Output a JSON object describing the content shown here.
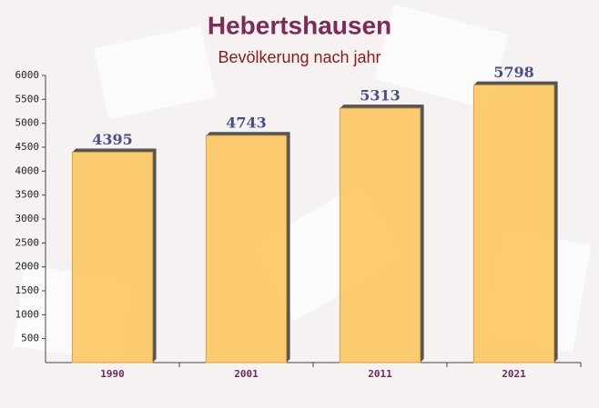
{
  "chart_data": {
    "type": "bar",
    "title": "Hebertshausen",
    "subtitle": "Bevölkerung nach jahr",
    "categories": [
      "1990",
      "2001",
      "2011",
      "2021"
    ],
    "values": [
      4395,
      4743,
      5313,
      5798
    ],
    "color": "#fdc560",
    "ylim": [
      0,
      6000
    ],
    "yticks": [
      500,
      1000,
      1500,
      2000,
      2500,
      3000,
      3500,
      4000,
      4500,
      5000,
      5500,
      6000
    ],
    "grid": false
  }
}
